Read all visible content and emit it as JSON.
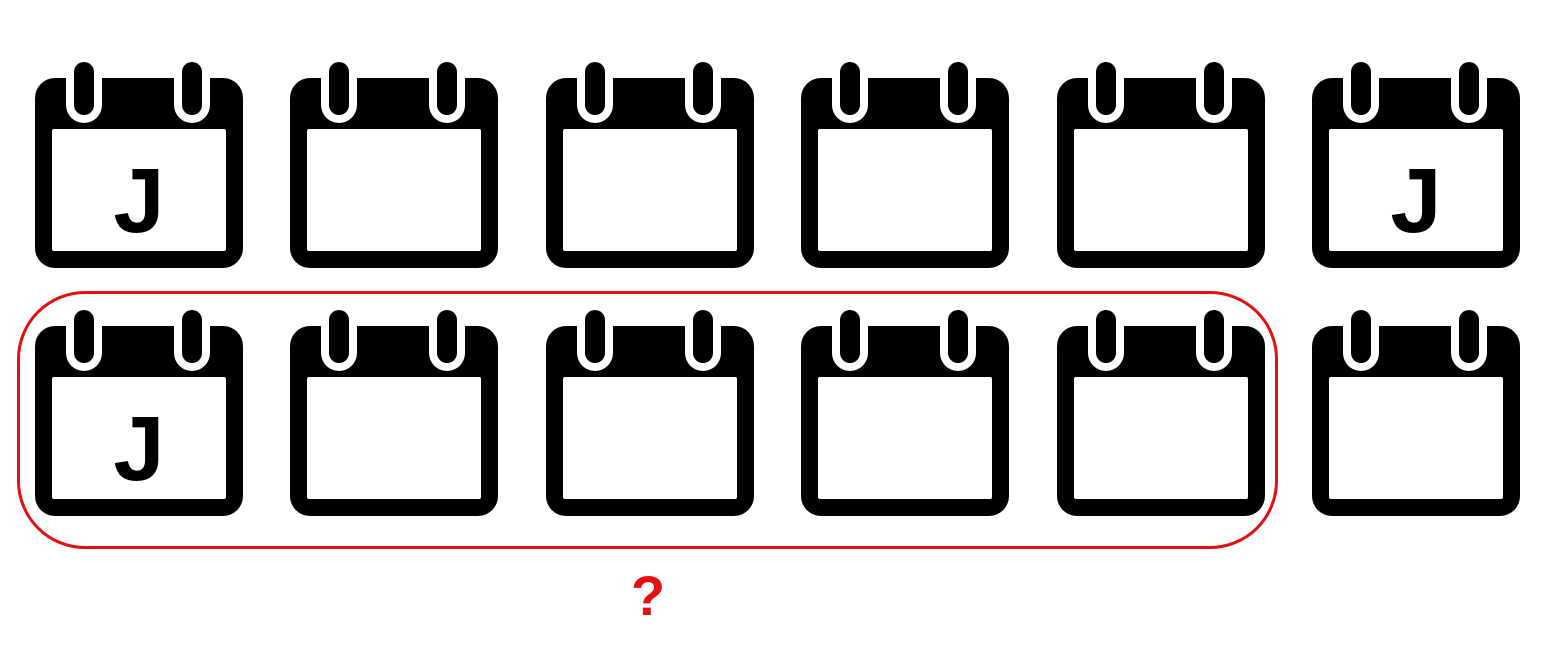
{
  "puzzle": {
    "accent_color": "#e31010",
    "icon_name": "calendar-icon",
    "question_mark": "?",
    "rows": [
      {
        "name": "top-row",
        "cells": [
          "J",
          "",
          "",
          "",
          "",
          "J"
        ]
      },
      {
        "name": "bottom-row",
        "cells": [
          "J",
          "",
          "",
          "",
          "",
          ""
        ]
      }
    ]
  }
}
